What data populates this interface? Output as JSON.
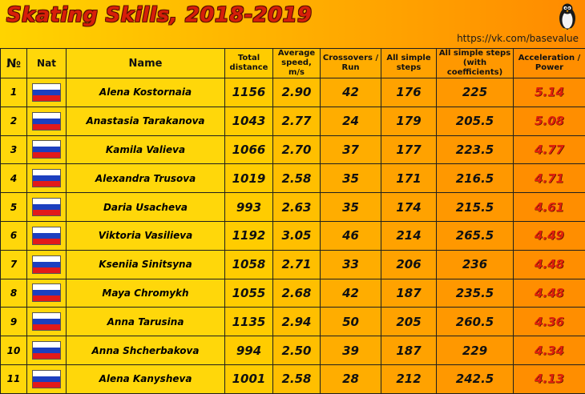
{
  "header": {
    "title": "Skating Skills, 2018-2019",
    "url": "https://vk.com/basevalue"
  },
  "colors": {
    "title": "#d61f0a",
    "accent_values": "#e0200c",
    "flag": [
      "#ffffff",
      "#1c3fbf",
      "#e21a1a"
    ]
  },
  "icons": {
    "logo": "penguin-icon",
    "flag": "russia-flag-icon"
  },
  "columns": [
    "№",
    "Nat",
    "Name",
    "Total distance",
    "Average speed, m/s",
    "Crossovers / Run",
    "All simple steps",
    "All simple steps (with coefficients)",
    "Acceleration / Power"
  ],
  "rows": [
    {
      "n": "1",
      "name": "Alena Kostornaia",
      "dist": "1156",
      "speed": "2.90",
      "cross": "42",
      "steps": "176",
      "steps_coef": "225",
      "acc": "5.14"
    },
    {
      "n": "2",
      "name": "Anastasia Tarakanova",
      "dist": "1043",
      "speed": "2.77",
      "cross": "24",
      "steps": "179",
      "steps_coef": "205.5",
      "acc": "5.08"
    },
    {
      "n": "3",
      "name": "Kamila Valieva",
      "dist": "1066",
      "speed": "2.70",
      "cross": "37",
      "steps": "177",
      "steps_coef": "223.5",
      "acc": "4.77"
    },
    {
      "n": "4",
      "name": "Alexandra Trusova",
      "dist": "1019",
      "speed": "2.58",
      "cross": "35",
      "steps": "171",
      "steps_coef": "216.5",
      "acc": "4.71"
    },
    {
      "n": "5",
      "name": "Daria Usacheva",
      "dist": "993",
      "speed": "2.63",
      "cross": "35",
      "steps": "174",
      "steps_coef": "215.5",
      "acc": "4.61"
    },
    {
      "n": "6",
      "name": "Viktoria Vasilieva",
      "dist": "1192",
      "speed": "3.05",
      "cross": "46",
      "steps": "214",
      "steps_coef": "265.5",
      "acc": "4.49"
    },
    {
      "n": "7",
      "name": "Kseniia Sinitsyna",
      "dist": "1058",
      "speed": "2.71",
      "cross": "33",
      "steps": "206",
      "steps_coef": "236",
      "acc": "4.48"
    },
    {
      "n": "8",
      "name": "Maya Chromykh",
      "dist": "1055",
      "speed": "2.68",
      "cross": "42",
      "steps": "187",
      "steps_coef": "235.5",
      "acc": "4.48"
    },
    {
      "n": "9",
      "name": "Anna Tarusina",
      "dist": "1135",
      "speed": "2.94",
      "cross": "50",
      "steps": "205",
      "steps_coef": "260.5",
      "acc": "4.36"
    },
    {
      "n": "10",
      "name": "Anna Shcherbakova",
      "dist": "994",
      "speed": "2.50",
      "cross": "39",
      "steps": "187",
      "steps_coef": "229",
      "acc": "4.34"
    },
    {
      "n": "11",
      "name": "Alena Kanysheva",
      "dist": "1001",
      "speed": "2.58",
      "cross": "28",
      "steps": "212",
      "steps_coef": "242.5",
      "acc": "4.13"
    }
  ]
}
